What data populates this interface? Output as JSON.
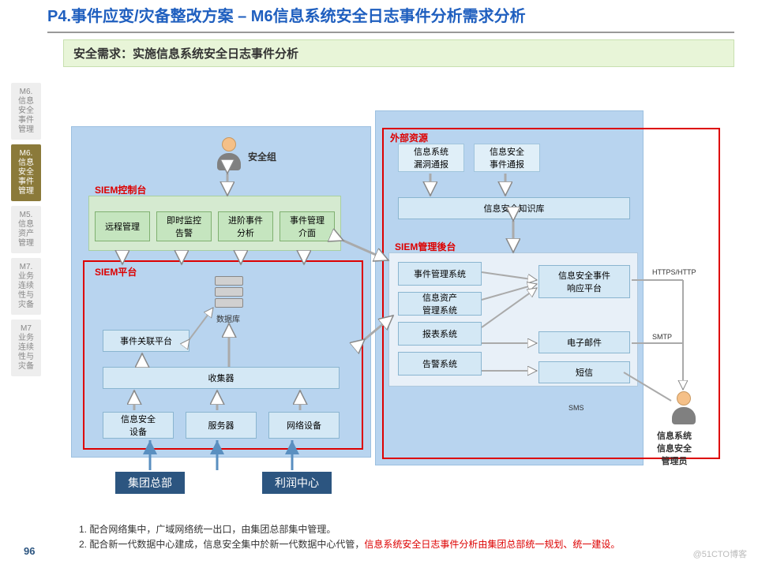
{
  "title": "P4.事件应变/灾备整改方案 – M6信息系统安全日志事件分析需求分析",
  "banner": "安全需求：实施信息系统安全日志事件分析",
  "sidebar": [
    {
      "label": "M6.\n信息\n安全\n事件\n管理",
      "active": false
    },
    {
      "label": "M6.\n信息\n安全\n事件\n管理",
      "active": true
    },
    {
      "label": "M5.\n信息\n资产\n管理",
      "active": false
    },
    {
      "label": "M7.\n业务\n连续\n性与\n灾备",
      "active": false
    },
    {
      "label": "M7\n业务\n连续\n性与\n灾备",
      "active": false
    }
  ],
  "labels": {
    "security_group": "安全组",
    "siem_console": "SIEM控制台",
    "siem_platform": "SIEM平台",
    "siem_backend": "SIEM管理後台",
    "external": "外部资源",
    "database": "数据库",
    "admin": "信息系统\n信息安全\n管理员",
    "https": "HTTPS/HTTP",
    "smtp": "SMTP",
    "sms": "SMS"
  },
  "console_boxes": [
    "远程管理",
    "即时监控\n告警",
    "进阶事件\n分析",
    "事件管理\n介面"
  ],
  "platform_boxes": {
    "correlation": "事件关联平台",
    "collector": "收集器"
  },
  "device_boxes": [
    "信息安全\n设备",
    "服务器",
    "网络设备"
  ],
  "external_boxes": [
    "信息系统\n漏洞通报",
    "信息安全\n事件通报"
  ],
  "knowledge": "信息安全知识库",
  "backend_left": [
    "事件管理系统",
    "信息资产\n管理系统",
    "报表系统",
    "告警系统"
  ],
  "backend_right": [
    "信息安全事件\n响应平台",
    "电子邮件",
    "短信"
  ],
  "bottom_boxes": [
    "集团总部",
    "利润中心"
  ],
  "notes": [
    "配合网络集中，广域网络统一出口，由集团总部集中管理。",
    {
      "pre": "配合新一代数据中心建成，信息安全集中於新一代数据中心代管，",
      "red": "信息系统安全日志事件分析由集团总部统一规划、统一建设。"
    }
  ],
  "page_num": "96",
  "watermark": "@51CTO博客",
  "colors": {
    "title": "#1f5fbf",
    "banner_bg": "#e8f5d8",
    "blue_bg": "#b8d4ef",
    "green_bg": "#d5ead0",
    "box_green": "#c5e5bf",
    "box_blue": "#d4e8f5",
    "dark": "#2c5580",
    "red": "#d00"
  }
}
